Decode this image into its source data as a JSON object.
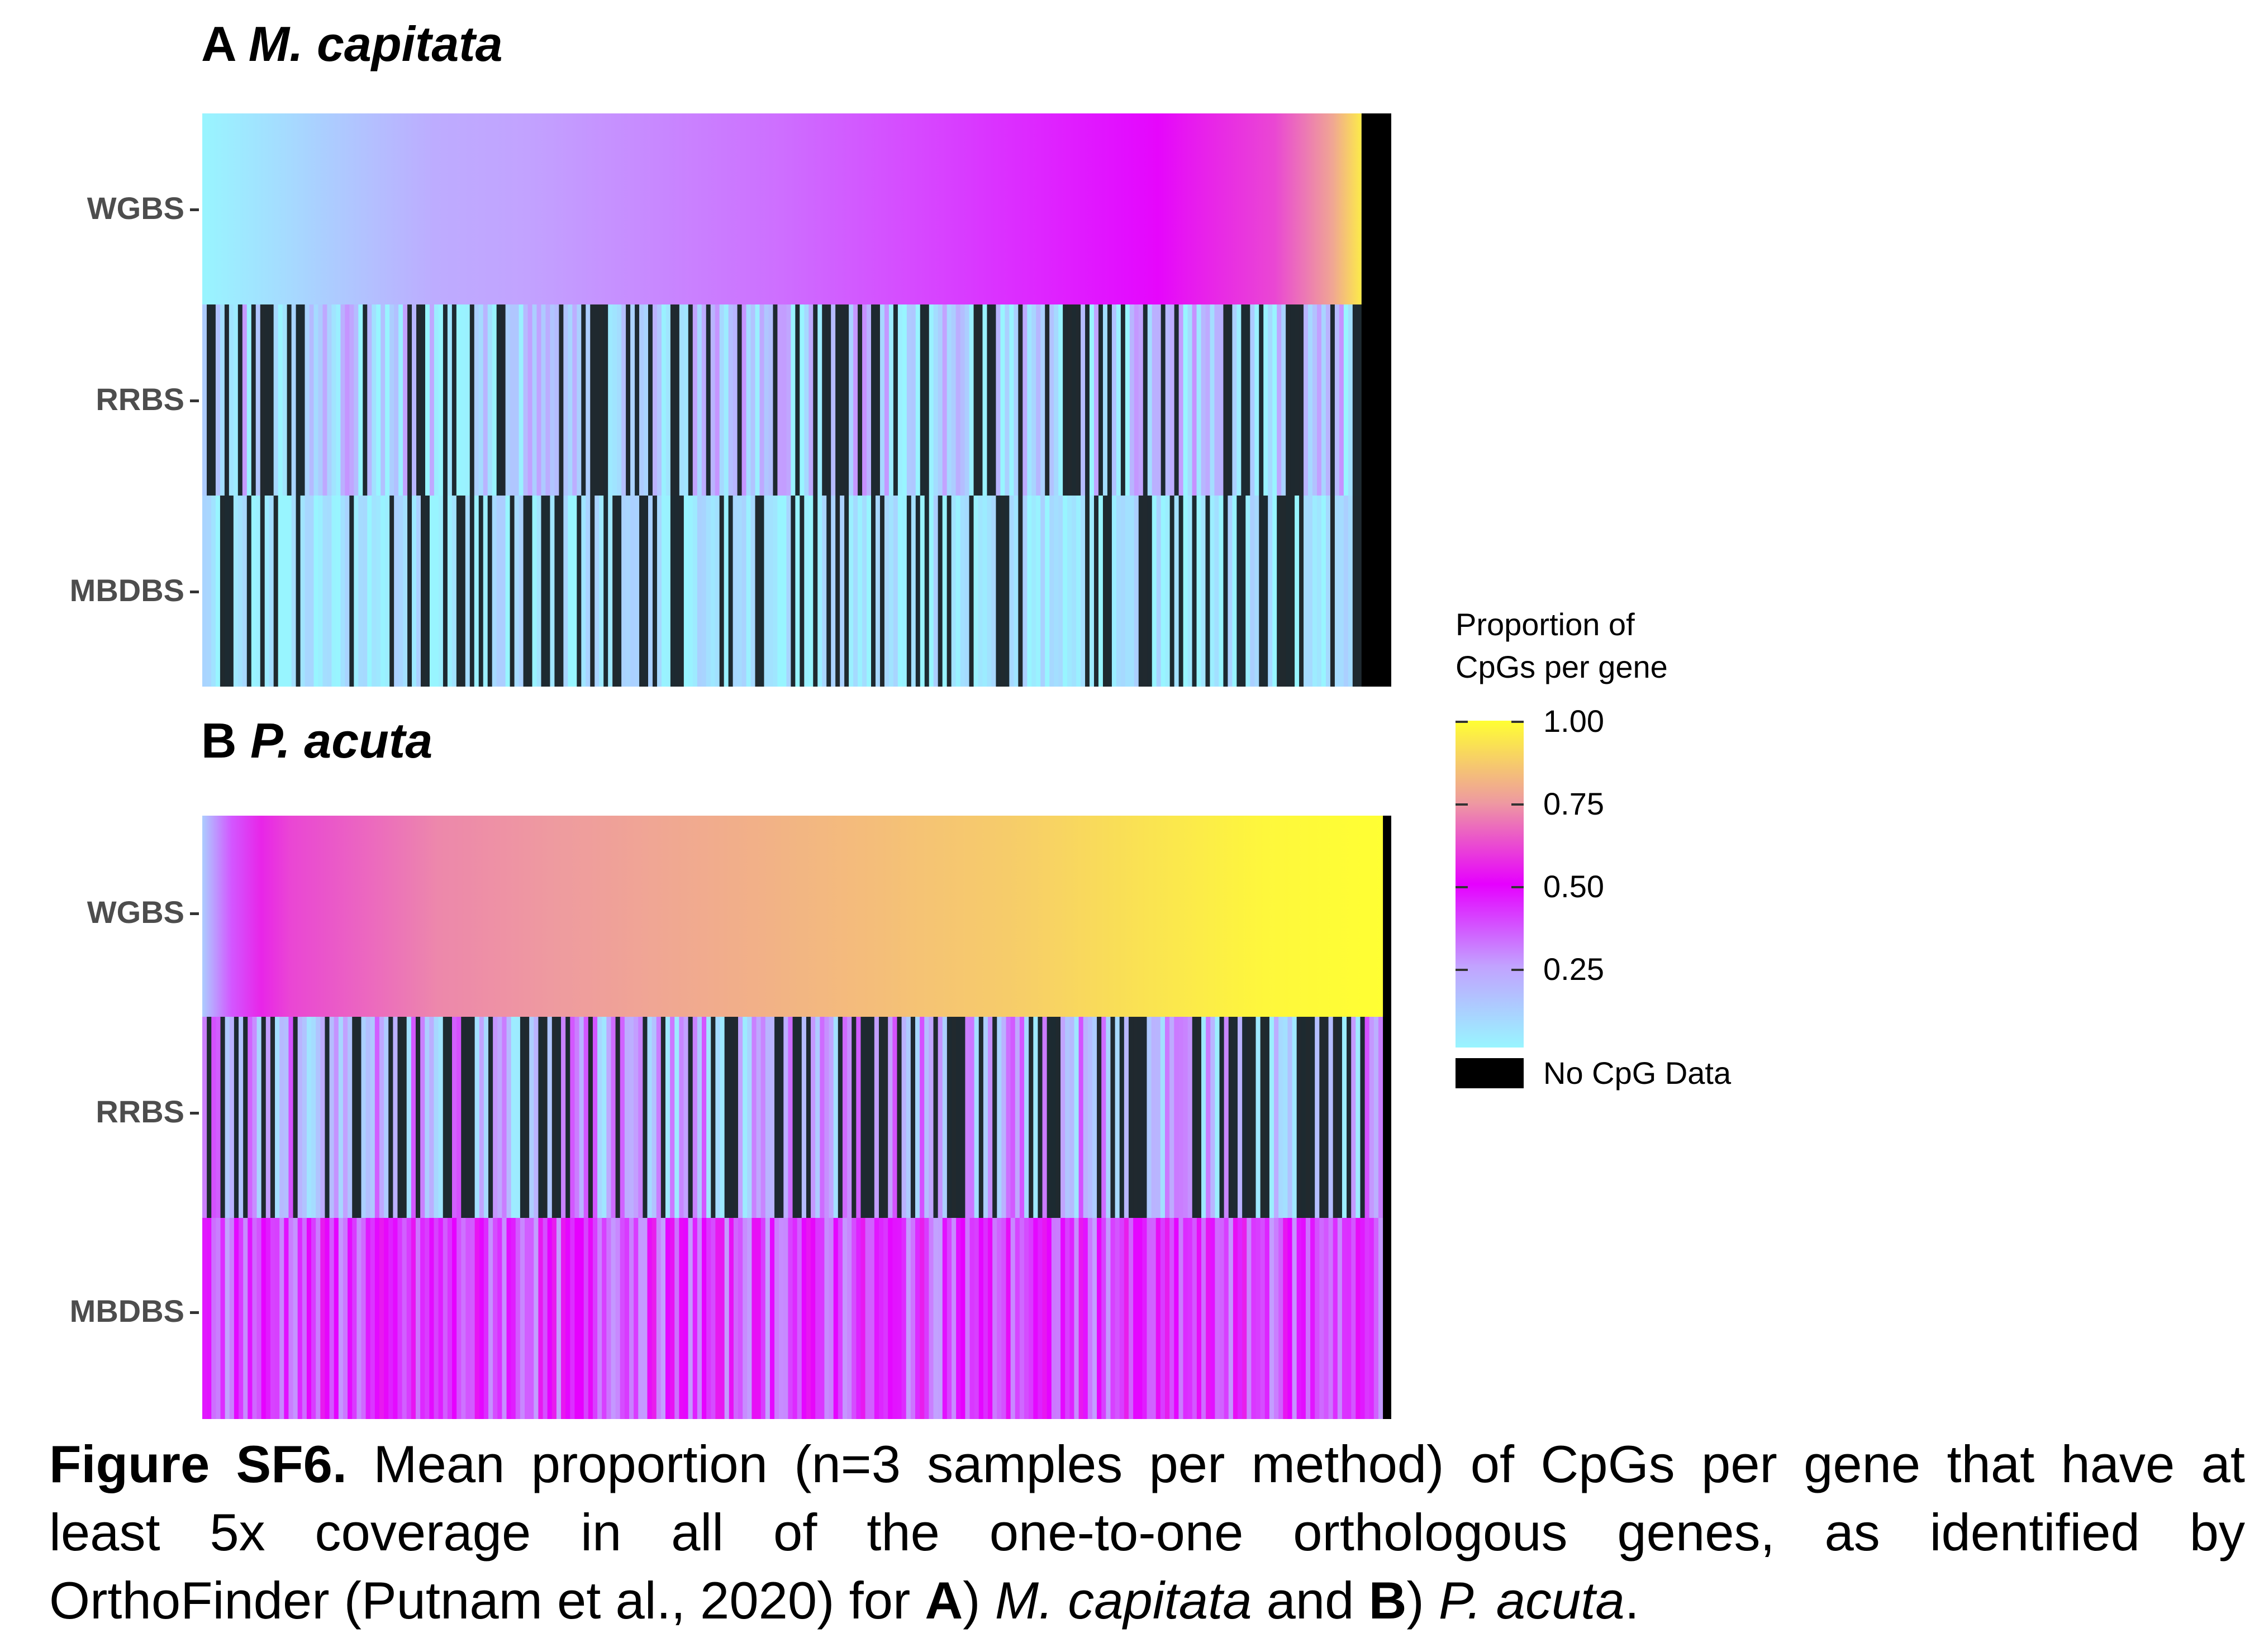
{
  "chart_data": [
    {
      "type": "heatmap",
      "panel_letter": "A",
      "title": "M. capitata",
      "rows": [
        "WGBS",
        "RRBS",
        "MBDBS"
      ],
      "colorscale": {
        "0.00": "#98F5FF",
        "0.25": "#C2A2FF",
        "0.50": "#E600FF",
        "0.75": "#EE9AA0",
        "1.00": "#FFFF33"
      },
      "series": [
        {
          "name": "WGBS",
          "profile": [
            [
              0.0,
              0.0
            ],
            [
              0.2,
              0.22
            ],
            [
              0.5,
              0.33
            ],
            [
              0.8,
              0.48
            ],
            [
              0.86,
              0.55
            ],
            [
              0.93,
              0.62
            ],
            [
              0.975,
              0.78
            ],
            [
              0.985,
              0.95
            ]
          ],
          "no_data_fraction": 0.025
        },
        {
          "name": "RRBS",
          "mean": 0.13,
          "spread": 0.15,
          "dark_fraction": 0.25,
          "no_data_fraction": 0.025
        },
        {
          "name": "MBDBS",
          "mean": 0.05,
          "spread": 0.07,
          "dark_fraction": 0.25,
          "no_data_fraction": 0.025
        }
      ]
    },
    {
      "type": "heatmap",
      "panel_letter": "B",
      "title": "P. acuta",
      "rows": [
        "WGBS",
        "RRBS",
        "MBDBS"
      ],
      "series": [
        {
          "name": "WGBS",
          "profile": [
            [
              0.0,
              0.12
            ],
            [
              0.02,
              0.3
            ],
            [
              0.035,
              0.5
            ],
            [
              0.06,
              0.6
            ],
            [
              0.2,
              0.72
            ],
            [
              0.45,
              0.8
            ],
            [
              0.7,
              0.88
            ],
            [
              0.9,
              0.98
            ],
            [
              1.0,
              1.0
            ]
          ],
          "no_data_fraction": 0.007
        },
        {
          "name": "RRBS",
          "mean": 0.2,
          "spread": 0.18,
          "dark_fraction": 0.3,
          "no_data_fraction": 0.007
        },
        {
          "name": "MBDBS",
          "mean": 0.4,
          "spread": 0.15,
          "dark_fraction": 0.0,
          "no_data_fraction": 0.007
        }
      ]
    }
  ],
  "legend": {
    "title_line1": "Proportion of",
    "title_line2": "CpGs per gene",
    "ticks": [
      "1.00",
      "0.75",
      "0.50",
      "0.25"
    ],
    "na_label": "No CpG Data",
    "na_color": "#000000"
  },
  "caption": {
    "label": "Figure SF6.",
    "line1_text": "Mean proportion (n=3 samples per method) of CpGs per gene that have at",
    "line2_text": "least 5x coverage in all of the one-to-one orthologous genes, as identified by",
    "line3_pre": "OrthoFinder (Putnam et al., 2020) for",
    "line3_a": "A",
    "line3_a_close": ")",
    "line3_species_a": "M. capitata",
    "line3_and": "and",
    "line3_b": "B",
    "line3_b_close": ")",
    "line3_species_b": "P. acuta",
    "line3_end": "."
  }
}
